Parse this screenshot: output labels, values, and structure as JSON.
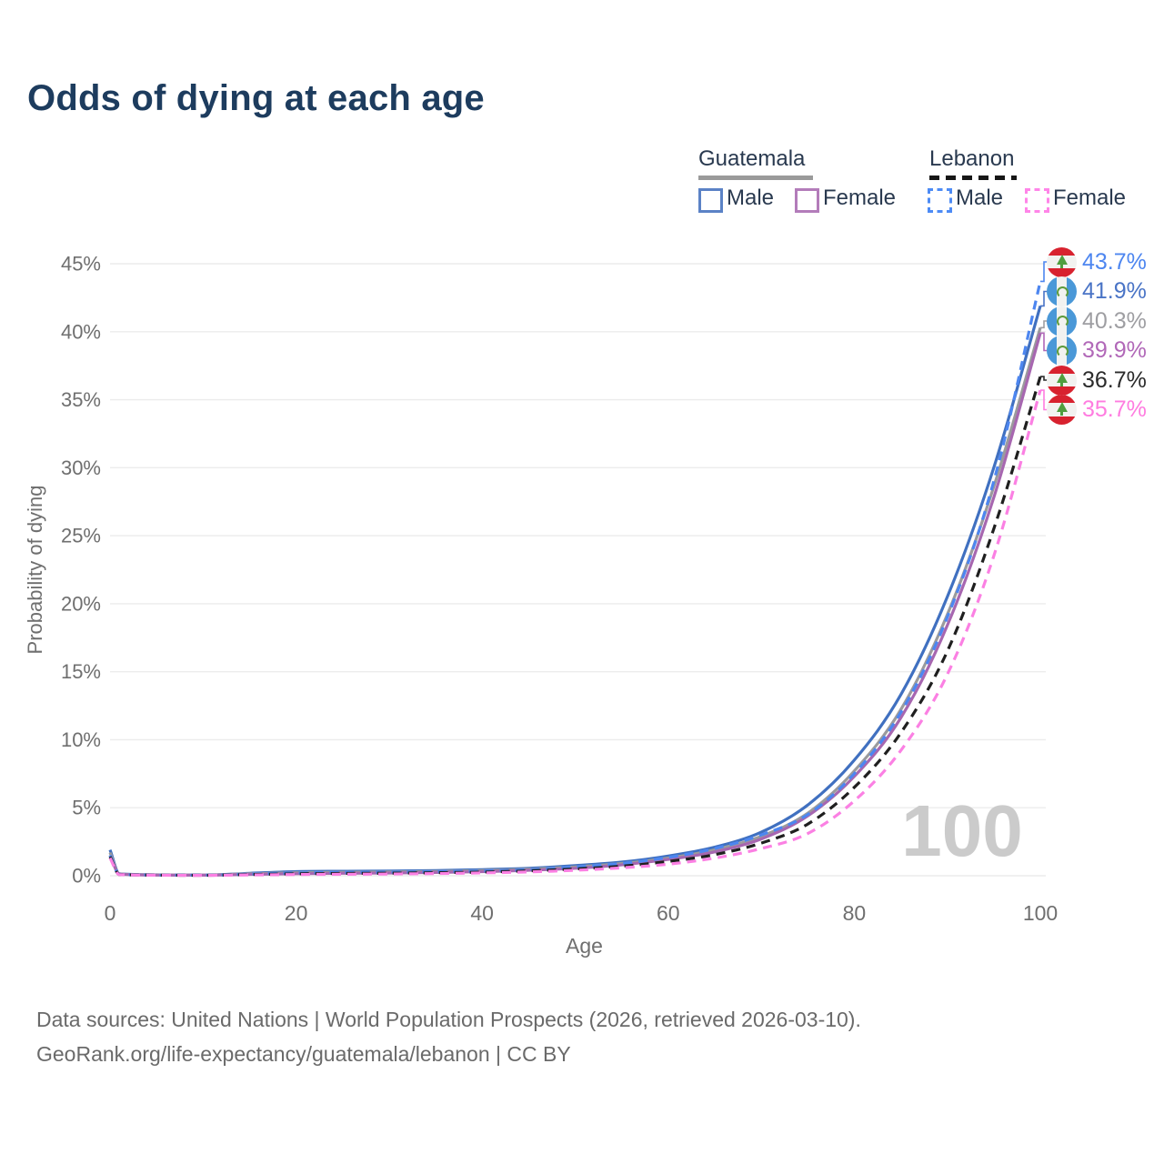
{
  "title": "Odds of dying at each age",
  "legend": {
    "groups": [
      {
        "label": "Guatemala",
        "line_style": "solid",
        "line_color": "#9a9a9a",
        "items": [
          {
            "label": "Male",
            "color": "#4070c0",
            "style": "solid"
          },
          {
            "label": "Female",
            "color": "#a767b0",
            "style": "solid"
          }
        ]
      },
      {
        "label": "Lebanon",
        "line_style": "dashed",
        "line_color": "#161616",
        "items": [
          {
            "label": "Male",
            "color": "#4d86f0",
            "style": "dashed"
          },
          {
            "label": "Female",
            "color": "#fb80e3",
            "style": "dashed"
          }
        ]
      }
    ]
  },
  "chart_data": {
    "type": "line",
    "title": "Odds of dying at each age",
    "xlabel": "Age",
    "ylabel": "Probability of dying",
    "xlim": [
      0,
      100
    ],
    "ylim": [
      0,
      45
    ],
    "x_ticks": [
      0,
      20,
      40,
      60,
      80,
      100
    ],
    "y_ticks": [
      0,
      5,
      10,
      15,
      20,
      25,
      30,
      35,
      40,
      45
    ],
    "y_tick_suffix": "%",
    "grid": "horizontal",
    "legend_position": "top-right",
    "watermark": "100",
    "x": [
      0,
      1,
      5,
      10,
      15,
      20,
      25,
      30,
      35,
      40,
      45,
      50,
      55,
      60,
      65,
      70,
      75,
      80,
      85,
      90,
      95,
      100
    ],
    "series": [
      {
        "name": "Guatemala Male",
        "country": "Guatemala",
        "sex": "Male",
        "color": "#4070c0",
        "dashed": false,
        "values": [
          1.9,
          0.15,
          0.07,
          0.05,
          0.18,
          0.3,
          0.33,
          0.35,
          0.38,
          0.45,
          0.55,
          0.75,
          1.0,
          1.45,
          2.1,
          3.2,
          5.2,
          8.5,
          13.3,
          20.5,
          30.0,
          41.9
        ]
      },
      {
        "name": "Guatemala Both sexes",
        "country": "Guatemala",
        "sex": "Both",
        "color": "#9b9b9d",
        "dashed": false,
        "values": [
          1.7,
          0.13,
          0.06,
          0.045,
          0.14,
          0.22,
          0.25,
          0.28,
          0.31,
          0.38,
          0.48,
          0.65,
          0.9,
          1.3,
          1.9,
          2.9,
          4.6,
          7.7,
          12.2,
          19.2,
          28.6,
          40.3
        ]
      },
      {
        "name": "Guatemala Female",
        "country": "Guatemala",
        "sex": "Female",
        "color": "#a767b0",
        "dashed": false,
        "values": [
          1.5,
          0.12,
          0.05,
          0.04,
          0.1,
          0.15,
          0.18,
          0.2,
          0.24,
          0.3,
          0.4,
          0.55,
          0.8,
          1.2,
          1.75,
          2.7,
          4.4,
          7.3,
          11.6,
          18.4,
          27.8,
          39.9
        ]
      },
      {
        "name": "Lebanon Male",
        "country": "Lebanon",
        "sex": "Male",
        "color": "#4d86f0",
        "dashed": true,
        "values": [
          1.5,
          0.1,
          0.05,
          0.04,
          0.12,
          0.2,
          0.24,
          0.26,
          0.3,
          0.35,
          0.45,
          0.65,
          0.9,
          1.35,
          2.0,
          3.0,
          4.5,
          7.5,
          12.0,
          19.0,
          29.0,
          43.7
        ]
      },
      {
        "name": "Lebanon Both sexes",
        "country": "Lebanon",
        "sex": "Both",
        "color": "#1f1f1f",
        "dashed": true,
        "values": [
          1.4,
          0.09,
          0.045,
          0.035,
          0.09,
          0.14,
          0.17,
          0.19,
          0.22,
          0.27,
          0.36,
          0.5,
          0.7,
          1.05,
          1.55,
          2.4,
          3.8,
          6.5,
          10.5,
          16.5,
          25.5,
          36.7
        ]
      },
      {
        "name": "Lebanon Female",
        "country": "Lebanon",
        "sex": "Female",
        "color": "#fb80e3",
        "dashed": true,
        "values": [
          1.3,
          0.08,
          0.04,
          0.03,
          0.06,
          0.09,
          0.11,
          0.13,
          0.16,
          0.21,
          0.28,
          0.4,
          0.58,
          0.85,
          1.3,
          2.0,
          3.1,
          5.5,
          9.2,
          14.8,
          23.5,
          35.7
        ]
      }
    ],
    "end_labels": [
      {
        "text": "43.7%",
        "flag": "lebanon",
        "color": "#4d86f0",
        "series": "Lebanon Male"
      },
      {
        "text": "41.9%",
        "flag": "guatemala",
        "color": "#4a74c6",
        "series": "Guatemala Male"
      },
      {
        "text": "40.3%",
        "flag": "guatemala",
        "color": "#9e9ea2",
        "series": "Guatemala Both sexes"
      },
      {
        "text": "39.9%",
        "flag": "guatemala",
        "color": "#b168b8",
        "series": "Guatemala Female"
      },
      {
        "text": "36.7%",
        "flag": "lebanon",
        "color": "#2b2b2b",
        "series": "Lebanon Both sexes"
      },
      {
        "text": "35.7%",
        "flag": "lebanon",
        "color": "#ff7ce0",
        "series": "Lebanon Female"
      }
    ]
  },
  "footer": {
    "line1": "Data sources: United Nations | World Population Prospects (2026, retrieved 2026-03-10).",
    "line2": "GeoRank.org/life-expectancy/guatemala/lebanon | CC BY"
  }
}
